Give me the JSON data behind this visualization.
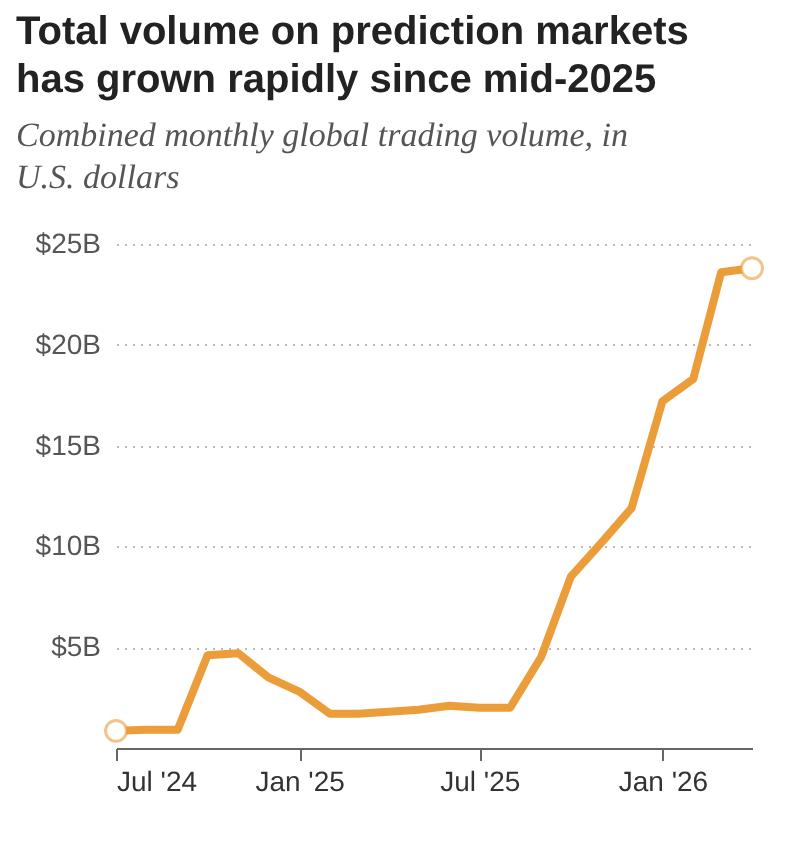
{
  "chart_data": {
    "type": "line",
    "title": "Total volume on prediction markets has grown rapidly since mid-2025",
    "subtitle": "Combined monthly global trading volume, in U.S. dollars",
    "x": [
      "2024-07",
      "2024-08",
      "2024-09",
      "2024-10",
      "2024-11",
      "2024-12",
      "2025-01",
      "2025-02",
      "2025-03",
      "2025-04",
      "2025-05",
      "2025-06",
      "2025-07",
      "2025-08",
      "2025-09",
      "2025-10",
      "2025-11",
      "2025-12",
      "2026-01",
      "2026-02",
      "2026-03",
      "2026-04"
    ],
    "series": [
      {
        "color": "#eb9d3a",
        "values": [
          0.85,
          0.9,
          0.9,
          4.6,
          4.7,
          3.5,
          2.8,
          1.7,
          1.7,
          1.8,
          1.9,
          2.1,
          2.0,
          2.0,
          4.5,
          8.5,
          10.2,
          11.9,
          17.2,
          18.3,
          23.6,
          23.8
        ]
      }
    ],
    "xlim": [
      "2024-07",
      "2026-04"
    ],
    "xticks": [
      {
        "value": "2024-07",
        "label": "Jul '24"
      },
      {
        "value": "2025-01",
        "label": "Jan '25"
      },
      {
        "value": "2025-07",
        "label": "Jul '25"
      },
      {
        "value": "2026-01",
        "label": "Jan '26"
      }
    ],
    "ylim": [
      0,
      25
    ],
    "yticks": [
      {
        "value": 5,
        "label": "$5B"
      },
      {
        "value": 10,
        "label": "$10B"
      },
      {
        "value": 15,
        "label": "$15B"
      },
      {
        "value": 20,
        "label": "$20B"
      },
      {
        "value": 25,
        "label": "$25B"
      }
    ],
    "grid": "y",
    "marker": "none",
    "line_style": "solid"
  }
}
